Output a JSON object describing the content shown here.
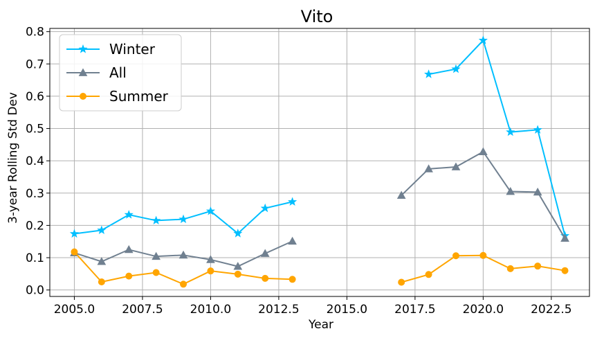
{
  "chart_data": {
    "type": "line",
    "title": "Vito",
    "xlabel": "Year",
    "ylabel": "3-year Rolling Std Dev",
    "xlim": [
      2004.1,
      2023.9
    ],
    "ylim": [
      -0.02,
      0.81
    ],
    "xticks": [
      2005.0,
      2007.5,
      2010.0,
      2012.5,
      2015.0,
      2017.5,
      2020.0,
      2022.5
    ],
    "xtick_labels": [
      "2005.0",
      "2007.5",
      "2010.0",
      "2012.5",
      "2015.0",
      "2017.5",
      "2020.0",
      "2022.5"
    ],
    "yticks": [
      0.0,
      0.1,
      0.2,
      0.3,
      0.4,
      0.5,
      0.6,
      0.7,
      0.8
    ],
    "ytick_labels": [
      "0.0",
      "0.1",
      "0.2",
      "0.3",
      "0.4",
      "0.5",
      "0.6",
      "0.7",
      "0.8"
    ],
    "grid": true,
    "legend_position": "top-left",
    "series": [
      {
        "name": "Winter",
        "color": "#00bfff",
        "marker": "star",
        "segments": [
          {
            "x": [
              2005,
              2006,
              2007,
              2008,
              2009,
              2010,
              2011,
              2012,
              2013
            ],
            "y": [
              0.174,
              0.185,
              0.233,
              0.215,
              0.219,
              0.244,
              0.175,
              0.253,
              0.273
            ]
          },
          {
            "x": [
              2018,
              2019,
              2020,
              2021,
              2022,
              2023
            ],
            "y": [
              0.668,
              0.684,
              0.773,
              0.489,
              0.496,
              0.168
            ]
          }
        ]
      },
      {
        "name": "All",
        "color": "#708090",
        "marker": "triangle",
        "segments": [
          {
            "x": [
              2005,
              2006,
              2007,
              2008,
              2009,
              2010,
              2011,
              2012,
              2013
            ],
            "y": [
              0.115,
              0.088,
              0.125,
              0.104,
              0.108,
              0.094,
              0.073,
              0.113,
              0.151
            ]
          },
          {
            "x": [
              2017,
              2018,
              2019,
              2020,
              2021,
              2022,
              2023
            ],
            "y": [
              0.293,
              0.375,
              0.381,
              0.428,
              0.305,
              0.303,
              0.16
            ]
          }
        ]
      },
      {
        "name": "Summer",
        "color": "#ffa500",
        "marker": "circle",
        "segments": [
          {
            "x": [
              2005,
              2006,
              2007,
              2008,
              2009,
              2010,
              2011,
              2012,
              2013
            ],
            "y": [
              0.118,
              0.025,
              0.043,
              0.054,
              0.018,
              0.059,
              0.049,
              0.036,
              0.033
            ]
          },
          {
            "x": [
              2017,
              2018,
              2019,
              2020,
              2021,
              2022,
              2023
            ],
            "y": [
              0.024,
              0.048,
              0.106,
              0.107,
              0.066,
              0.074,
              0.06
            ]
          }
        ]
      }
    ]
  }
}
